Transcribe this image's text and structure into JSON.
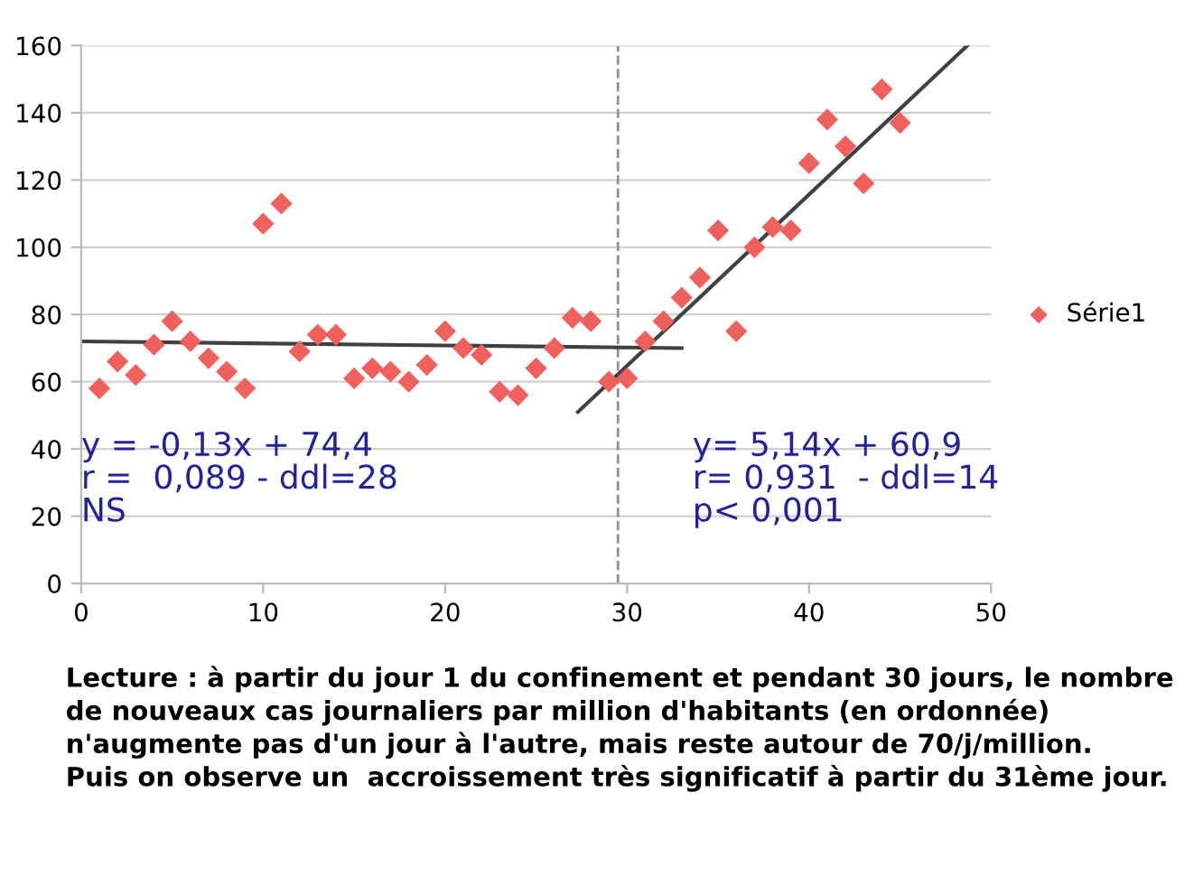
{
  "chart_data": {
    "type": "scatter",
    "xlim": [
      0,
      50
    ],
    "xticks": [
      0,
      10,
      20,
      30,
      40,
      50
    ],
    "ylim": [
      0,
      160
    ],
    "yticks": [
      0,
      20,
      40,
      60,
      80,
      100,
      120,
      140,
      160
    ],
    "grid": "y",
    "legend": "right",
    "series": [
      {
        "name": "Série1",
        "marker": "diamond",
        "color": "#f0605c",
        "x": [
          1,
          2,
          3,
          4,
          5,
          6,
          7,
          8,
          9,
          10,
          11,
          12,
          13,
          14,
          15,
          16,
          17,
          18,
          19,
          20,
          21,
          22,
          23,
          24,
          25,
          26,
          27,
          28,
          29,
          30,
          31,
          32,
          33,
          34,
          35,
          36,
          37,
          38,
          39,
          40,
          41,
          42,
          43,
          44,
          45
        ],
        "values": [
          58,
          66,
          62,
          71,
          78,
          72,
          67,
          63,
          58,
          107,
          113,
          69,
          74,
          74,
          61,
          64,
          63,
          60,
          65,
          75,
          70,
          68,
          57,
          56,
          64,
          70,
          79,
          78,
          60,
          61,
          72,
          78,
          85,
          91,
          105,
          75,
          100,
          106,
          105,
          125,
          138,
          130,
          119,
          147,
          137
        ]
      },
      {
        "type": "line",
        "color": "#404040",
        "x": [
          0,
          33
        ],
        "values": [
          72,
          70
        ]
      },
      {
        "type": "line",
        "color": "#404040",
        "x": [
          27.3,
          48.7
        ],
        "values": [
          51,
          160
        ]
      }
    ],
    "ref_lines": [
      {
        "axis": "x",
        "value": 29.5,
        "color": "#909090",
        "line_style": "dashed"
      }
    ],
    "annotations": [
      "y = -0,13x + 74,4\nr =  0,089 - ddl=28\nNS",
      "y= 5,14x + 60,9\nr= 0,931  - ddl=14\np< 0,001",
      "Lecture : à partir du jour 1 du confinement et pendant 30 jours, le nombre\nde nouveaux cas journaliers par million d'habitants (en ordonnée)\nn'augmente pas d'un jour à l'autre, mais reste autour de 70/j/million.\nPuis on observe un  accroissement très significatif à partir du 31ème jour."
    ]
  }
}
